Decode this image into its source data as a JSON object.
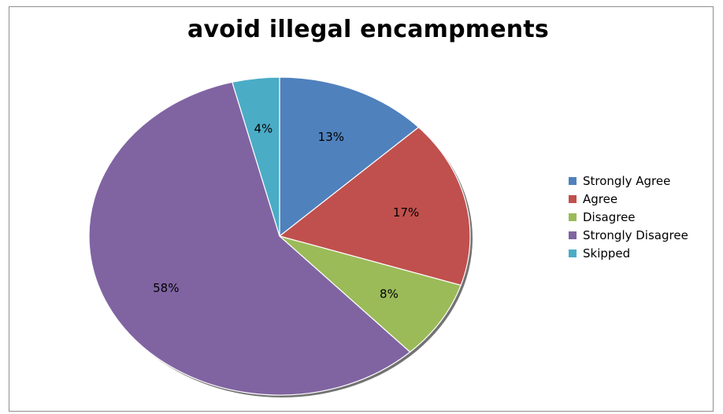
{
  "chart_data": {
    "type": "pie",
    "title": "avoid illegal encampments",
    "slices": [
      {
        "name": "Strongly Agree",
        "value": 13,
        "label": "13%",
        "color": "#4f81bd"
      },
      {
        "name": "Agree",
        "value": 17,
        "label": "17%",
        "color": "#c0504d"
      },
      {
        "name": "Disagree",
        "value": 8,
        "label": "8%",
        "color": "#9bbb59"
      },
      {
        "name": "Strongly Disagree",
        "value": 58,
        "label": "58%",
        "color": "#8064a2"
      },
      {
        "name": "Skipped",
        "value": 4,
        "label": "4%",
        "color": "#4bacc6"
      }
    ],
    "legend_position": "right"
  }
}
